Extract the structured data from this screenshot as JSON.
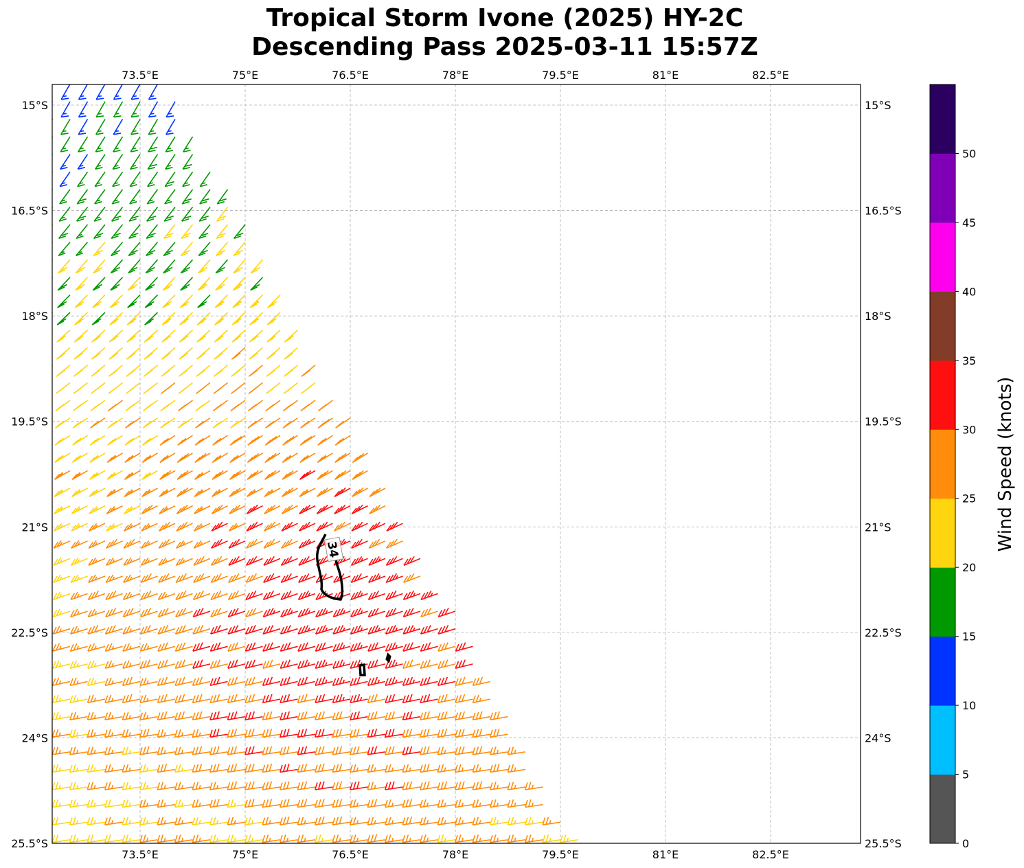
{
  "chart_data": {
    "type": "wind-barb map",
    "title_line1": "Tropical Storm Ivone (2025) HY-2C",
    "title_line2": "Descending Pass 2025-03-11 15:57Z",
    "extent": {
      "lon": [
        72.25,
        83.8
      ],
      "lat": [
        -25.5,
        -14.7
      ]
    },
    "lon_ticks": [
      73.5,
      75,
      76.5,
      78,
      79.5,
      81,
      82.5
    ],
    "lon_tick_labels": [
      "73.5°E",
      "75°E",
      "76.5°E",
      "78°E",
      "79.5°E",
      "81°E",
      "82.5°E"
    ],
    "lat_ticks": [
      -15,
      -16.5,
      -18,
      -19.5,
      -21,
      -22.5,
      -24,
      -25.5
    ],
    "lat_tick_labels": [
      "15°S",
      "16.5°S",
      "18°S",
      "19.5°S",
      "21°S",
      "22.5°S",
      "24°S",
      "25.5°S"
    ],
    "grid": true,
    "colorbar": {
      "label": "Wind Speed (knots)",
      "bounds": [
        0,
        5,
        10,
        15,
        20,
        25,
        30,
        35,
        40,
        45,
        50,
        55
      ],
      "tick_labels": [
        "0",
        "5",
        "10",
        "15",
        "20",
        "25",
        "30",
        "35",
        "40",
        "45",
        "50"
      ],
      "colors": [
        "#555555",
        "#00bfff",
        "#0033ff",
        "#009900",
        "#ffd50f",
        "#ff8c0a",
        "#ff1010",
        "#823c28",
        "#ff00ee",
        "#8000b8",
        "#2b0060"
      ]
    },
    "contour": {
      "level": 34,
      "label": "34"
    },
    "wind_field": {
      "center_lon": 76.6,
      "center_lat": -22.4,
      "max_speed": 34,
      "min_speed": 12
    }
  }
}
